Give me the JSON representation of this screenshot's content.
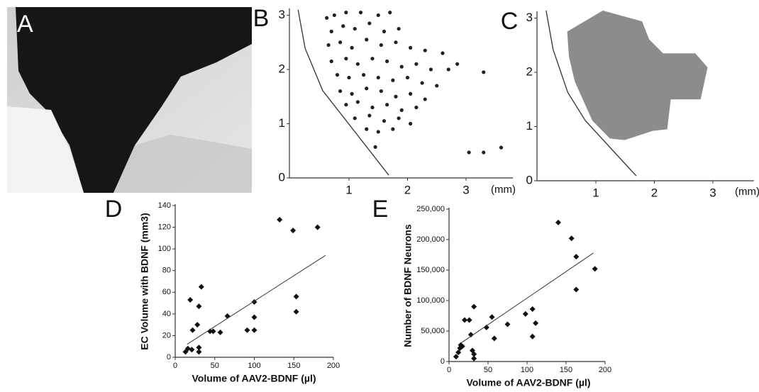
{
  "image_panel": {
    "panel": "A"
  },
  "chart_data": [
    {
      "type": "scatter",
      "panel": "B",
      "x_unit": "(mm)",
      "x": [
        0.62,
        0.75,
        0.95,
        1.2,
        1.5,
        1.7,
        0.7,
        0.9,
        1.1,
        1.35,
        1.6,
        1.85,
        0.65,
        0.85,
        1.05,
        1.3,
        1.55,
        1.8,
        2.05,
        2.3,
        2.6,
        0.7,
        0.95,
        1.15,
        1.4,
        1.65,
        1.9,
        2.15,
        2.4,
        2.7,
        2.85,
        0.8,
        1.0,
        1.25,
        1.5,
        1.75,
        2.0,
        2.25,
        2.5,
        0.85,
        1.05,
        1.3,
        1.55,
        1.8,
        2.05,
        2.3,
        0.95,
        1.15,
        1.4,
        1.65,
        1.9,
        2.15,
        1.1,
        1.35,
        1.6,
        1.85,
        2.05,
        1.3,
        1.5,
        1.75,
        1.45,
        3.3,
        3.05,
        3.3,
        3.6
      ],
      "y": [
        2.95,
        3.0,
        3.05,
        3.05,
        3.0,
        3.05,
        2.7,
        2.8,
        2.75,
        2.85,
        2.7,
        2.75,
        2.45,
        2.5,
        2.4,
        2.55,
        2.45,
        2.5,
        2.4,
        2.35,
        2.3,
        2.15,
        2.2,
        2.1,
        2.2,
        2.15,
        2.05,
        2.1,
        2.0,
        2.0,
        2.1,
        1.9,
        1.85,
        1.9,
        1.85,
        1.8,
        1.85,
        1.75,
        1.7,
        1.6,
        1.55,
        1.65,
        1.6,
        1.5,
        1.55,
        1.45,
        1.35,
        1.4,
        1.3,
        1.35,
        1.25,
        1.3,
        1.1,
        1.15,
        1.05,
        1.1,
        1.0,
        0.9,
        0.85,
        0.9,
        0.57,
        1.95,
        0.47,
        0.47,
        0.56
      ],
      "color": "#222",
      "boundary": {
        "x": [
          0.13,
          0.25,
          0.55,
          1.68
        ],
        "y": [
          3.1,
          2.39,
          1.61,
          0.05
        ]
      },
      "xlim": [
        0,
        3.8
      ],
      "ylim": [
        0,
        3.1
      ],
      "xticks": [
        1,
        2,
        3
      ],
      "yticks": [
        0,
        1,
        2,
        3
      ]
    },
    {
      "type": "area",
      "panel": "C",
      "x_unit": "(mm)",
      "polygon": {
        "x": [
          0.51,
          1.12,
          1.79,
          1.91,
          2.15,
          2.7,
          2.91,
          2.79,
          2.28,
          2.22,
          1.97,
          1.49,
          1.24,
          0.94,
          0.64,
          0.54
        ],
        "y": [
          2.75,
          3.14,
          2.94,
          2.61,
          2.35,
          2.35,
          2.09,
          1.5,
          1.5,
          0.95,
          0.92,
          0.75,
          0.78,
          1.11,
          1.83,
          2.29
        ]
      },
      "color": "#8c8c8c",
      "boundary": {
        "x": [
          0.15,
          0.27,
          0.52,
          0.82,
          1.69
        ],
        "y": [
          3.14,
          2.42,
          1.63,
          1.11,
          0.09
        ]
      },
      "xlim": [
        0,
        3.7
      ],
      "ylim": [
        0,
        3.1
      ],
      "xticks": [
        1,
        2,
        3
      ],
      "yticks": [
        0,
        1,
        2,
        3
      ]
    },
    {
      "type": "scatter",
      "panel": "D",
      "x_label": "Volume of AAV2-BDNF (µl)",
      "y_label": "EC Volume with BDNF (mm3)",
      "x": [
        13,
        16,
        21,
        19,
        22,
        28,
        30,
        33,
        30,
        30,
        44,
        48,
        57,
        66,
        91,
        100,
        100,
        100,
        132,
        149,
        153,
        153,
        180
      ],
      "y": [
        5,
        8,
        7,
        53,
        25,
        30,
        47,
        65,
        9,
        5,
        24,
        24,
        23,
        38,
        25,
        25,
        37,
        51,
        127,
        117,
        56,
        42,
        120
      ],
      "color": "#111",
      "trend": {
        "x": [
          15,
          190
        ],
        "y": [
          12,
          94
        ]
      },
      "xlim": [
        0,
        200
      ],
      "ylim": [
        0,
        140
      ],
      "xticks": [
        0,
        50,
        100,
        150,
        200
      ],
      "yticks": [
        0,
        20,
        40,
        60,
        80,
        100,
        120,
        140
      ]
    },
    {
      "type": "scatter",
      "panel": "E",
      "x_label": "Volume of AAV2-BDNF (µl)",
      "y_label": "Number of BDNF Neurons",
      "x": [
        9,
        12,
        14,
        15,
        17,
        20,
        26,
        28,
        32,
        30,
        32,
        32,
        48,
        55,
        58,
        75,
        98,
        107,
        107,
        111,
        140,
        157,
        163,
        163,
        187
      ],
      "y": [
        8000,
        15000,
        22000,
        27000,
        25000,
        68000,
        68000,
        44000,
        90000,
        18000,
        12000,
        5000,
        56000,
        73000,
        38000,
        61000,
        78000,
        86000,
        41000,
        63000,
        228000,
        202000,
        172000,
        118000,
        152000
      ],
      "color": "#111",
      "trend": {
        "x": [
          15,
          185
        ],
        "y": [
          30000,
          178000
        ]
      },
      "xlim": [
        0,
        200
      ],
      "ylim": [
        0,
        250000
      ],
      "xticks": [
        0,
        50,
        100,
        150,
        200
      ],
      "yticks": [
        0,
        {
          "value": 50000,
          "label": "50,000"
        },
        {
          "value": 100000,
          "label": "100,000"
        },
        {
          "value": 150000,
          "label": "150,000"
        },
        {
          "value": 200000,
          "label": "200,000"
        },
        {
          "value": 250000,
          "label": "250,000"
        }
      ]
    }
  ]
}
